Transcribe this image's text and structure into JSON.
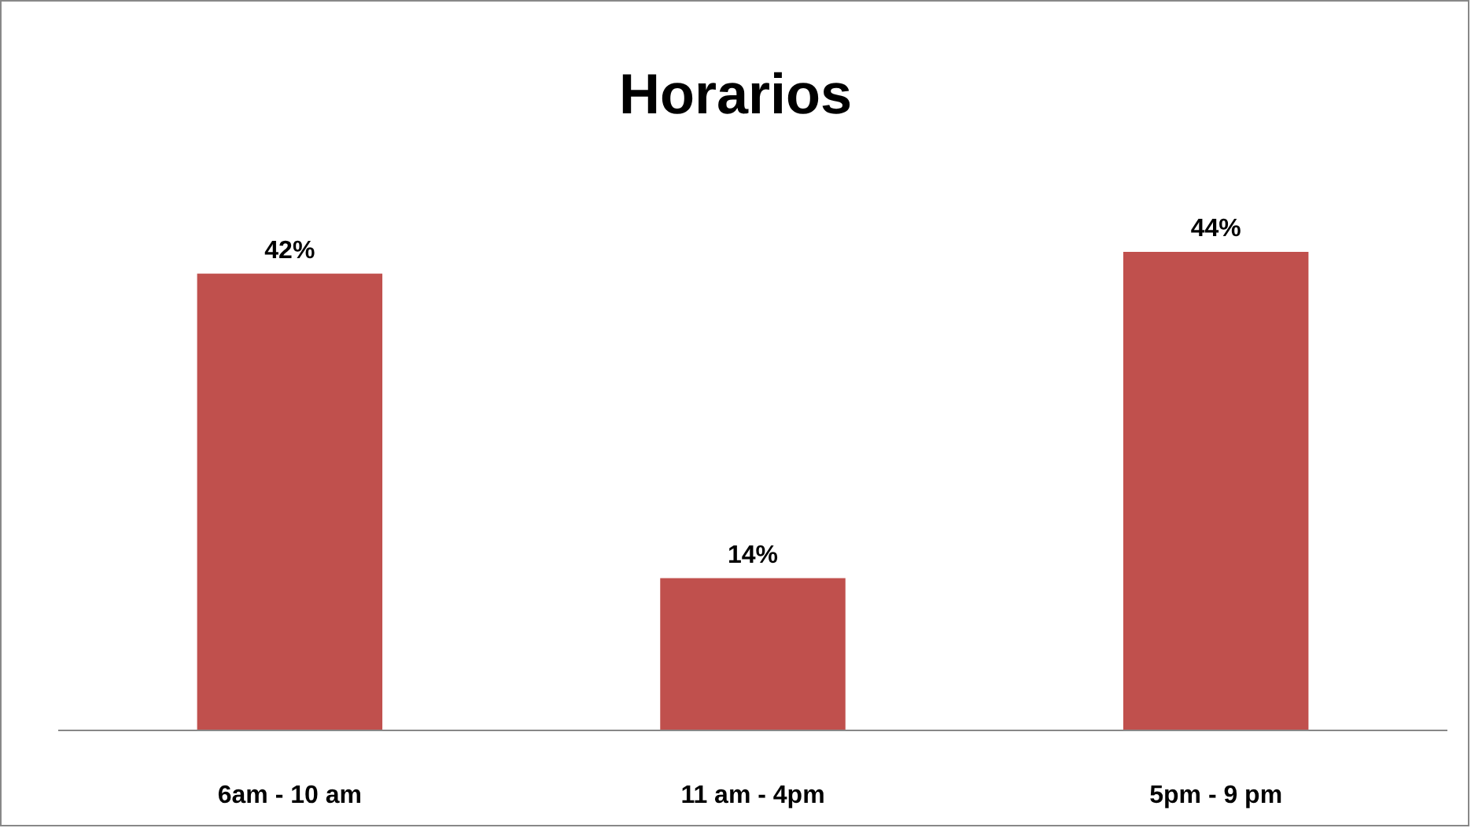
{
  "chart_data": {
    "type": "bar",
    "title": "Horarios",
    "categories": [
      "6am - 10 am",
      "11 am - 4pm",
      "5pm - 9 pm"
    ],
    "values": [
      42,
      14,
      44
    ],
    "value_labels": [
      "42%",
      "14%",
      "44%"
    ],
    "color": "#c0504d"
  }
}
